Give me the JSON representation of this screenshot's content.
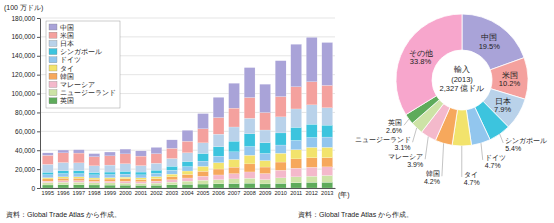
{
  "chart_data": [
    {
      "type": "bar",
      "stacked": true,
      "ylabel": "(100 万ドル)",
      "xlabel": "(年)",
      "source": "資料：Global Trade Atlas から作成。",
      "categories": [
        "1995",
        "1996",
        "1997",
        "1998",
        "1999",
        "2000",
        "2001",
        "2002",
        "2003",
        "2004",
        "2005",
        "2006",
        "2007",
        "2008",
        "2009",
        "2010",
        "2011",
        "2012",
        "2013"
      ],
      "series": [
        {
          "name": "中国",
          "color": "#a9a3d8",
          "values": [
            2600,
            3000,
            3500,
            3300,
            4100,
            5100,
            5500,
            6700,
            9000,
            11600,
            16100,
            21400,
            26300,
            31700,
            30000,
            38000,
            45000,
            47000,
            45400
          ]
        },
        {
          "name": "米国",
          "color": "#f4a19e",
          "values": [
            9600,
            10300,
            10400,
            9600,
            9700,
            10400,
            10100,
            10100,
            10800,
            12200,
            14900,
            17600,
            20000,
            22000,
            18500,
            21500,
            23500,
            24500,
            23700
          ]
        },
        {
          "name": "日本",
          "color": "#b9d2ea",
          "values": [
            8300,
            8800,
            8400,
            7000,
            7400,
            8000,
            6800,
            7300,
            8200,
            9200,
            11200,
            13200,
            15000,
            16500,
            13300,
            17000,
            19500,
            20500,
            18400
          ]
        },
        {
          "name": "シンガポール",
          "color": "#3cc4de",
          "values": [
            2600,
            2800,
            3000,
            2600,
            2700,
            3000,
            3000,
            3400,
            4200,
            5500,
            8100,
            10100,
            11300,
            13400,
            11500,
            12800,
            13800,
            14000,
            12600
          ]
        },
        {
          "name": "ドイツ",
          "color": "#92c6ee",
          "values": [
            3200,
            3500,
            3400,
            3300,
            3300,
            3200,
            3200,
            3400,
            4100,
            4600,
            5600,
            6900,
            8100,
            9200,
            7500,
            8700,
            9800,
            10500,
            10900
          ]
        },
        {
          "name": "タイ",
          "color": "#f2e36c",
          "values": [
            1300,
            1400,
            1400,
            1300,
            1400,
            1700,
            1700,
            2200,
            2900,
            3700,
            5200,
            6700,
            8100,
            9200,
            6900,
            9300,
            9800,
            11000,
            10900
          ]
        },
        {
          "name": "韓国",
          "color": "#f6a85c",
          "values": [
            2300,
            2600,
            2600,
            2300,
            2400,
            2700,
            2300,
            2600,
            3000,
            3700,
            5200,
            6300,
            6900,
            8500,
            6900,
            8700,
            9800,
            10000,
            9800
          ]
        },
        {
          "name": "マレーシア",
          "color": "#f4b9cb",
          "values": [
            1500,
            1700,
            1700,
            1500,
            1700,
            1900,
            1800,
            2100,
            2600,
            3300,
            4300,
            5000,
            5600,
            6700,
            6400,
            8100,
            9200,
            9500,
            9100
          ]
        },
        {
          "name": "ニュージーランド",
          "color": "#cde3a6",
          "values": [
            2600,
            2700,
            2700,
            2300,
            2300,
            2200,
            2100,
            2300,
            2800,
            3400,
            4000,
            4400,
            4800,
            5200,
            4600,
            5800,
            6300,
            6500,
            7200
          ]
        },
        {
          "name": "英国",
          "color": "#5eab5b",
          "values": [
            3200,
            3400,
            3400,
            3200,
            3100,
            3000,
            2800,
            2900,
            3400,
            3900,
            4200,
            4400,
            4800,
            5100,
            4300,
            4900,
            5500,
            6000,
            6050
          ]
        }
      ],
      "ylim": [
        0,
        180000
      ],
      "yticks": [
        0,
        {
          "value": 20000,
          "label": "20,000"
        },
        {
          "value": 40000,
          "label": "40,000"
        },
        {
          "value": 60000,
          "label": "60,000"
        },
        {
          "value": 80000,
          "label": "80,000"
        },
        {
          "value": 100000,
          "label": "100,000"
        },
        {
          "value": 120000,
          "label": "120,000"
        },
        {
          "value": 140000,
          "label": "140,000"
        },
        {
          "value": 160000,
          "label": "160,000"
        },
        {
          "value": 180000,
          "label": "180,000"
        }
      ],
      "grid": true,
      "legend": "upper left"
    },
    {
      "type": "pie",
      "title": "輸入",
      "subtitle": "(2013)",
      "total_label": "2,327 億ドル",
      "source": "資料：Global Trade Atlas から作成。",
      "categories": [
        "中国",
        "米国",
        "日本",
        "シンガポール",
        "ドイツ",
        "タイ",
        "韓国",
        "マレーシア",
        "ニュージーランド",
        "英国",
        "その他"
      ],
      "values": [
        19.5,
        10.2,
        7.9,
        5.4,
        4.7,
        4.7,
        4.2,
        3.9,
        3.1,
        2.6,
        33.8
      ],
      "value_labels": [
        "19.5%",
        "10.2%",
        "7.9%",
        "5.4%",
        "4.7%",
        "4.7%",
        "4.2%",
        "3.9%",
        "3.1%",
        "2.6%",
        "33.8%"
      ],
      "colors": [
        "#a9a3d8",
        "#f4a19e",
        "#b9d2ea",
        "#3cc4de",
        "#92c6ee",
        "#f2e36c",
        "#f6a85c",
        "#f4b9cb",
        "#cde3a6",
        "#5eab5b",
        "#f7a6cc"
      ],
      "data_labels": true
    }
  ]
}
